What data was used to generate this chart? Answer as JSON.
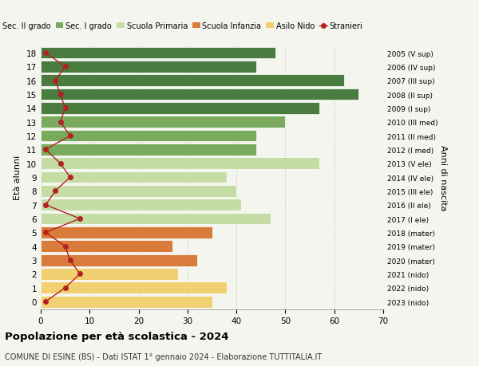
{
  "ages": [
    18,
    17,
    16,
    15,
    14,
    13,
    12,
    11,
    10,
    9,
    8,
    7,
    6,
    5,
    4,
    3,
    2,
    1,
    0
  ],
  "bar_values": [
    48,
    44,
    62,
    65,
    57,
    50,
    44,
    44,
    57,
    38,
    40,
    41,
    47,
    35,
    27,
    32,
    28,
    38,
    35
  ],
  "bar_colors": [
    "#4a7c3f",
    "#4a7c3f",
    "#4a7c3f",
    "#4a7c3f",
    "#4a7c3f",
    "#7aaa5e",
    "#7aaa5e",
    "#7aaa5e",
    "#c5dda4",
    "#c5dda4",
    "#c5dda4",
    "#c5dda4",
    "#c5dda4",
    "#d97b3a",
    "#d97b3a",
    "#d97b3a",
    "#f0d070",
    "#f0d070",
    "#f0d070"
  ],
  "stranieri_values": [
    1,
    5,
    3,
    4,
    5,
    4,
    6,
    1,
    4,
    6,
    3,
    1,
    8,
    1,
    5,
    6,
    8,
    5,
    1
  ],
  "right_labels": [
    "2005 (V sup)",
    "2006 (IV sup)",
    "2007 (III sup)",
    "2008 (II sup)",
    "2009 (I sup)",
    "2010 (III med)",
    "2011 (II med)",
    "2012 (I med)",
    "2013 (V ele)",
    "2014 (IV ele)",
    "2015 (III ele)",
    "2016 (II ele)",
    "2017 (I ele)",
    "2018 (mater)",
    "2019 (mater)",
    "2020 (mater)",
    "2021 (nido)",
    "2022 (nido)",
    "2023 (nido)"
  ],
  "ylabel": "Età alunni",
  "right_ylabel": "Anni di nascita",
  "title": "Popolazione per età scolastica - 2024",
  "subtitle": "COMUNE DI ESINE (BS) - Dati ISTAT 1° gennaio 2024 - Elaborazione TUTTITALIA.IT",
  "xlim": [
    0,
    70
  ],
  "xticks": [
    0,
    10,
    20,
    30,
    40,
    50,
    60,
    70
  ],
  "legend_labels": [
    "Sec. II grado",
    "Sec. I grado",
    "Scuola Primaria",
    "Scuola Infanzia",
    "Asilo Nido",
    "Stranieri"
  ],
  "legend_colors": [
    "#4a7c3f",
    "#7aaa5e",
    "#c5dda4",
    "#d97b3a",
    "#f0d070",
    "#b22222"
  ],
  "stranieri_color": "#b22222",
  "bg_color": "#f5f5f0",
  "bar_height": 0.85
}
